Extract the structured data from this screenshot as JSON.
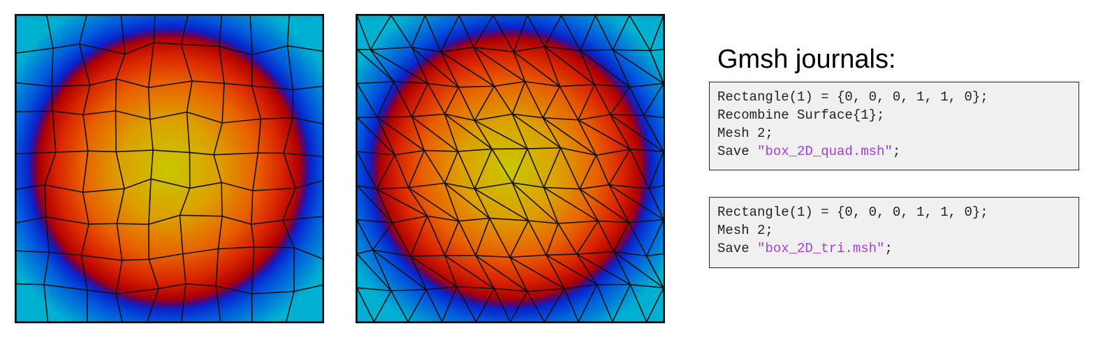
{
  "journals_title": "Gmsh journals:",
  "quad_journal": {
    "lines": [
      "Rectangle(1) = {0, 0, 0, 1, 1, 0};",
      "Recombine Surface{1};",
      "Mesh 2;"
    ],
    "save_prefix": "Save ",
    "save_file": "\"box_2D_quad.msh\"",
    "save_suffix": ";"
  },
  "tri_journal": {
    "lines": [
      "Rectangle(1) = {0, 0, 0, 1, 1, 0};",
      "Mesh 2;"
    ],
    "save_prefix": "Save ",
    "save_file": "\"box_2D_tri.msh\"",
    "save_suffix": ";"
  },
  "colors": {
    "string_literal": "#a040e0",
    "code_background": "#f0f0f0",
    "field_max": "#c8c800",
    "field_mid": "#d82000",
    "field_low": "#1000c0",
    "field_edge": "#00c8c8"
  }
}
